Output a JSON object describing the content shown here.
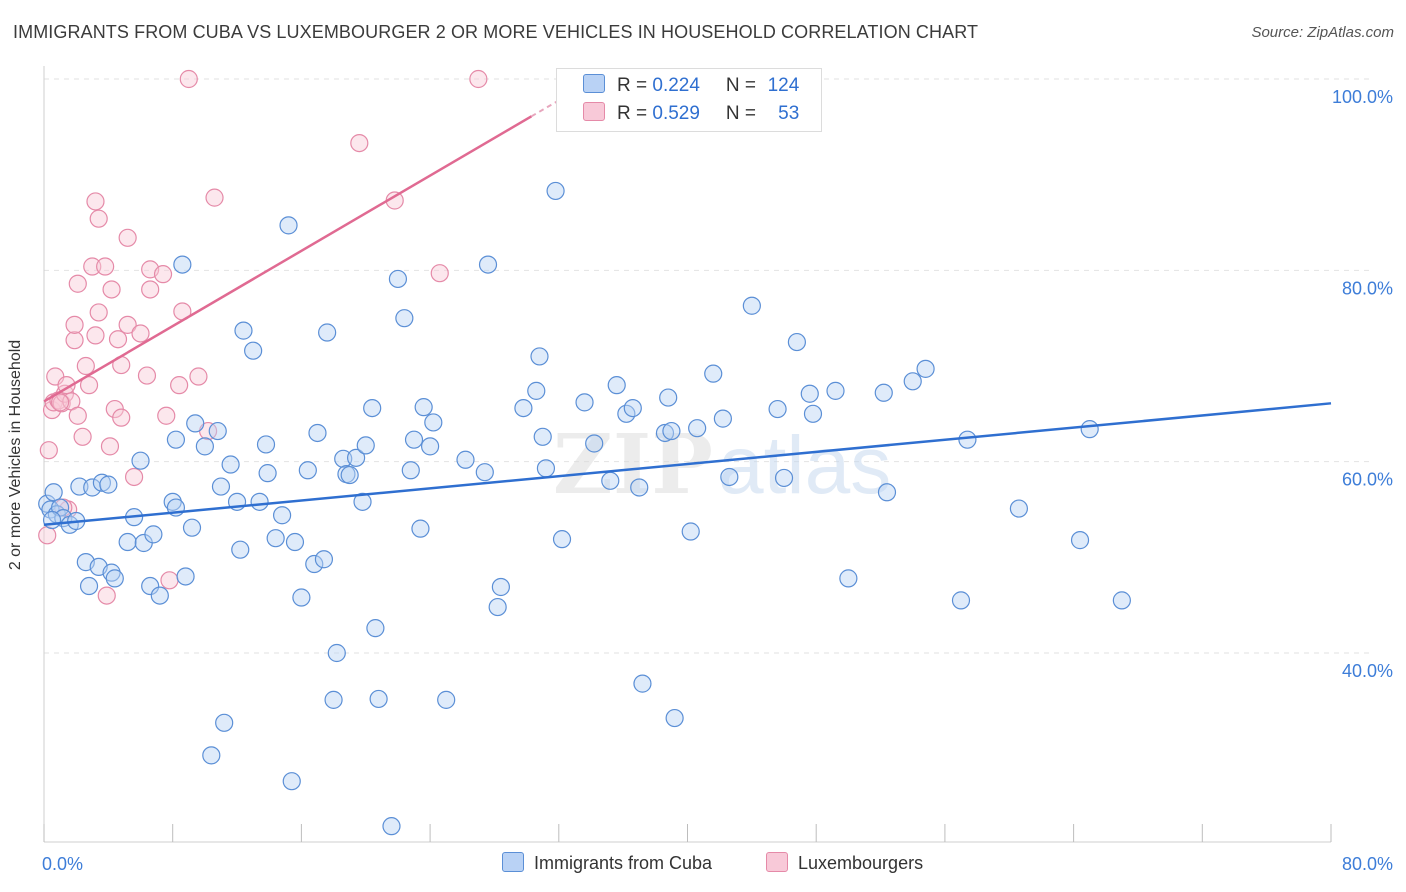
{
  "header": {
    "title": "IMMIGRANTS FROM CUBA VS LUXEMBOURGER 2 OR MORE VEHICLES IN HOUSEHOLD CORRELATION CHART",
    "source": "Source: ZipAtlas.com"
  },
  "legend": {
    "rows": [
      {
        "r_label": "R = ",
        "r_value": "0.224",
        "n_label": "N = ",
        "n_value": "124"
      },
      {
        "r_label": "R = ",
        "r_value": "0.529",
        "n_label": "N = ",
        "n_value": "53"
      }
    ]
  },
  "watermark": {
    "part1": "ZIP",
    "part2": "atlas"
  },
  "colors": {
    "blue_fill": "#b9d2f5",
    "blue_stroke": "#5b8fd6",
    "blue_line": "#2f6fd0",
    "pink_fill": "#f8c9d8",
    "pink_stroke": "#e58aa8",
    "pink_line": "#e06a92",
    "axis_text": "#3d7dd8",
    "grid": "#e2e2e2"
  },
  "chart_data": {
    "type": "scatter",
    "title": "IMMIGRANTS FROM CUBA VS LUXEMBOURGER 2 OR MORE VEHICLES IN HOUSEHOLD CORRELATION CHART",
    "xlabel": "",
    "ylabel": "2 or more Vehicles in Household",
    "xlim": [
      0,
      80
    ],
    "ylim": [
      18,
      100
    ],
    "x_tick_labels": [
      {
        "value": 0,
        "label": "0.0%"
      },
      {
        "value": 80,
        "label": "80.0%"
      }
    ],
    "y_tick_labels": [
      {
        "value": 100,
        "label": "100.0%"
      },
      {
        "value": 80,
        "label": "80.0%"
      },
      {
        "value": 60,
        "label": "60.0%"
      },
      {
        "value": 40,
        "label": "40.0%"
      }
    ],
    "grid": true,
    "legend_position": "top-center",
    "series": [
      {
        "name": "Immigrants from Cuba",
        "color": "#5b8fd6",
        "trend": {
          "x0": 0,
          "y0": 53.4,
          "x1": 80,
          "y1": 66.1
        },
        "points": [
          [
            0.2,
            55.6
          ],
          [
            0.4,
            55.0
          ],
          [
            0.6,
            56.8
          ],
          [
            0.8,
            54.5
          ],
          [
            1.0,
            55.2
          ],
          [
            1.2,
            54.1
          ],
          [
            1.6,
            53.4
          ],
          [
            2.0,
            53.8
          ],
          [
            2.2,
            57.4
          ],
          [
            2.6,
            49.5
          ],
          [
            2.8,
            47.0
          ],
          [
            3.0,
            57.3
          ],
          [
            3.4,
            49.0
          ],
          [
            3.6,
            57.8
          ],
          [
            4.0,
            57.6
          ],
          [
            4.2,
            48.4
          ],
          [
            4.4,
            47.8
          ],
          [
            5.2,
            51.6
          ],
          [
            5.6,
            54.2
          ],
          [
            6.0,
            60.1
          ],
          [
            6.2,
            51.5
          ],
          [
            6.6,
            47.0
          ],
          [
            6.8,
            52.4
          ],
          [
            7.2,
            46.0
          ],
          [
            8.0,
            55.8
          ],
          [
            8.2,
            62.3
          ],
          [
            8.6,
            80.6
          ],
          [
            8.8,
            48.0
          ],
          [
            9.2,
            53.1
          ],
          [
            9.4,
            64.0
          ],
          [
            10.0,
            61.6
          ],
          [
            10.4,
            29.3
          ],
          [
            10.8,
            63.2
          ],
          [
            11.0,
            57.4
          ],
          [
            11.2,
            32.7
          ],
          [
            11.6,
            59.7
          ],
          [
            12.0,
            55.8
          ],
          [
            12.2,
            50.8
          ],
          [
            12.4,
            73.7
          ],
          [
            13.0,
            71.6
          ],
          [
            13.4,
            55.8
          ],
          [
            13.8,
            61.8
          ],
          [
            13.9,
            58.8
          ],
          [
            14.4,
            52.0
          ],
          [
            14.8,
            54.4
          ],
          [
            15.2,
            84.7
          ],
          [
            15.4,
            26.6
          ],
          [
            15.6,
            51.6
          ],
          [
            16.0,
            45.8
          ],
          [
            16.4,
            59.1
          ],
          [
            16.8,
            49.3
          ],
          [
            17.0,
            63.0
          ],
          [
            17.4,
            49.8
          ],
          [
            17.6,
            73.5
          ],
          [
            18.0,
            35.1
          ],
          [
            18.2,
            40.0
          ],
          [
            18.6,
            60.3
          ],
          [
            18.8,
            58.7
          ],
          [
            19.0,
            58.6
          ],
          [
            19.4,
            60.4
          ],
          [
            19.8,
            55.8
          ],
          [
            20.0,
            61.7
          ],
          [
            20.4,
            65.6
          ],
          [
            20.6,
            42.6
          ],
          [
            20.8,
            35.2
          ],
          [
            21.6,
            21.9
          ],
          [
            22.0,
            79.1
          ],
          [
            22.4,
            75.0
          ],
          [
            22.8,
            59.1
          ],
          [
            23.0,
            62.3
          ],
          [
            23.4,
            53.0
          ],
          [
            23.6,
            65.7
          ],
          [
            24.0,
            61.6
          ],
          [
            24.2,
            64.1
          ],
          [
            25.0,
            35.1
          ],
          [
            26.2,
            60.2
          ],
          [
            27.4,
            58.9
          ],
          [
            27.6,
            80.6
          ],
          [
            28.4,
            46.9
          ],
          [
            28.2,
            44.8
          ],
          [
            29.8,
            65.6
          ],
          [
            30.6,
            67.4
          ],
          [
            30.8,
            71.0
          ],
          [
            31.0,
            62.6
          ],
          [
            31.2,
            59.3
          ],
          [
            31.8,
            88.3
          ],
          [
            32.2,
            51.9
          ],
          [
            33.6,
            66.2
          ],
          [
            34.2,
            61.9
          ],
          [
            35.2,
            58.0
          ],
          [
            35.6,
            68.0
          ],
          [
            36.2,
            65.0
          ],
          [
            36.6,
            65.6
          ],
          [
            37.0,
            57.3
          ],
          [
            37.2,
            36.8
          ],
          [
            38.6,
            63.0
          ],
          [
            38.8,
            66.7
          ],
          [
            39.0,
            63.2
          ],
          [
            39.2,
            33.2
          ],
          [
            40.2,
            52.7
          ],
          [
            41.6,
            69.2
          ],
          [
            42.2,
            64.5
          ],
          [
            42.6,
            58.4
          ],
          [
            44.0,
            76.3
          ],
          [
            45.6,
            65.5
          ],
          [
            46.0,
            58.3
          ],
          [
            46.8,
            72.5
          ],
          [
            47.6,
            67.1
          ],
          [
            47.8,
            65.0
          ],
          [
            49.2,
            67.4
          ],
          [
            50.0,
            47.8
          ],
          [
            52.2,
            67.2
          ],
          [
            52.4,
            56.8
          ],
          [
            54.0,
            68.4
          ],
          [
            54.8,
            69.7
          ],
          [
            57.0,
            45.5
          ],
          [
            57.4,
            62.3
          ],
          [
            60.6,
            55.1
          ],
          [
            64.4,
            51.8
          ],
          [
            65.0,
            63.4
          ],
          [
            67.0,
            45.5
          ],
          [
            40.6,
            63.5
          ],
          [
            8.2,
            55.2
          ],
          [
            0.5,
            53.9
          ]
        ]
      },
      {
        "name": "Luxembourgers",
        "color": "#e58aa8",
        "trend": {
          "x0": 0,
          "y0": 66.3,
          "x1": 30.3,
          "y1": 96.1,
          "dash_x1": 33.9,
          "dash_y1": 99.6
        },
        "points": [
          [
            0.2,
            52.3
          ],
          [
            0.3,
            61.2
          ],
          [
            0.5,
            65.4
          ],
          [
            0.6,
            66.2
          ],
          [
            0.7,
            68.9
          ],
          [
            0.9,
            66.4
          ],
          [
            1.1,
            66.1
          ],
          [
            1.3,
            67.1
          ],
          [
            1.4,
            68.0
          ],
          [
            1.5,
            55.0
          ],
          [
            1.7,
            66.3
          ],
          [
            1.9,
            72.7
          ],
          [
            1.9,
            74.3
          ],
          [
            2.1,
            78.6
          ],
          [
            2.1,
            64.8
          ],
          [
            2.4,
            62.6
          ],
          [
            2.6,
            70.0
          ],
          [
            2.8,
            68.0
          ],
          [
            3.0,
            80.4
          ],
          [
            3.2,
            73.2
          ],
          [
            3.2,
            87.2
          ],
          [
            3.4,
            75.6
          ],
          [
            3.4,
            85.4
          ],
          [
            3.8,
            80.4
          ],
          [
            3.9,
            46.0
          ],
          [
            4.1,
            61.6
          ],
          [
            4.2,
            78.0
          ],
          [
            4.4,
            65.5
          ],
          [
            4.6,
            72.8
          ],
          [
            4.8,
            70.1
          ],
          [
            5.2,
            83.4
          ],
          [
            5.2,
            74.3
          ],
          [
            5.6,
            58.4
          ],
          [
            6.0,
            73.4
          ],
          [
            6.4,
            69.0
          ],
          [
            6.6,
            78.0
          ],
          [
            6.6,
            80.1
          ],
          [
            7.4,
            79.6
          ],
          [
            7.6,
            64.8
          ],
          [
            7.8,
            47.6
          ],
          [
            8.4,
            68.0
          ],
          [
            8.6,
            75.7
          ],
          [
            9.0,
            100.0
          ],
          [
            9.6,
            68.9
          ],
          [
            10.2,
            63.2
          ],
          [
            10.6,
            87.6
          ],
          [
            19.6,
            93.3
          ],
          [
            21.8,
            87.3
          ],
          [
            24.6,
            79.7
          ],
          [
            27.0,
            100.0
          ],
          [
            1.0,
            66.2
          ],
          [
            1.2,
            55.2
          ],
          [
            4.8,
            64.6
          ]
        ]
      }
    ]
  },
  "bottom_legend": {
    "items": [
      {
        "label": "Immigrants from Cuba"
      },
      {
        "label": "Luxembourgers"
      }
    ]
  }
}
